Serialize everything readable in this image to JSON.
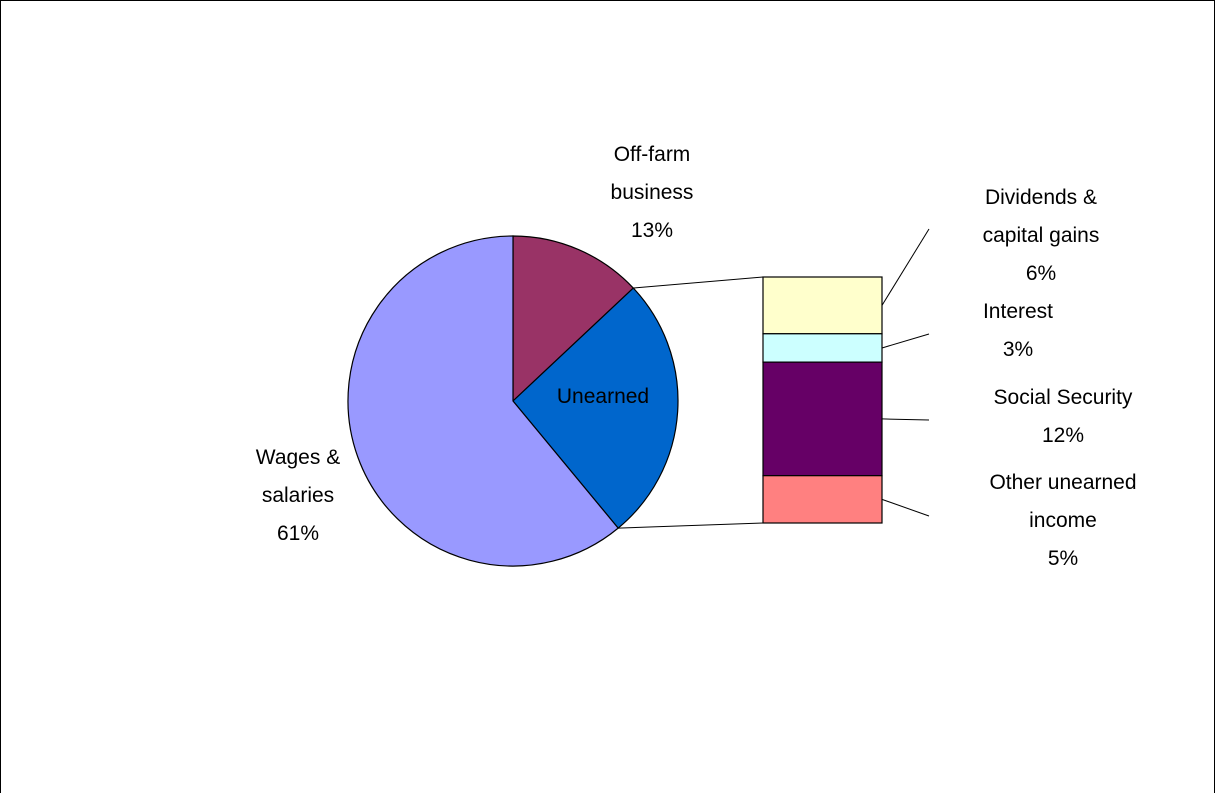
{
  "chart_data": {
    "type": "pie",
    "variant": "bar-of-pie",
    "title": "",
    "pie": {
      "slices": [
        {
          "label_lines": [
            "Off-farm",
            "business"
          ],
          "percent_label": "13%",
          "value": 13,
          "color": "#993366"
        },
        {
          "label_lines": [
            "Unearned"
          ],
          "percent_label": "",
          "value": 26,
          "color": "#0066CC"
        },
        {
          "label_lines": [
            "Wages &",
            "salaries"
          ],
          "percent_label": "61%",
          "value": 61,
          "color": "#9999FF"
        }
      ]
    },
    "bar": {
      "parent_slice": "Unearned",
      "segments": [
        {
          "label_lines": [
            "Dividends &",
            "capital gains"
          ],
          "percent_label": "6%",
          "value": 6,
          "color": "#FFFFCC"
        },
        {
          "label_lines": [
            "Interest"
          ],
          "percent_label": "3%",
          "value": 3,
          "color": "#CCFFFF"
        },
        {
          "label_lines": [
            "Social Security"
          ],
          "percent_label": "12%",
          "value": 12,
          "color": "#660066"
        },
        {
          "label_lines": [
            "Other unearned",
            "income"
          ],
          "percent_label": "5%",
          "value": 5,
          "color": "#FF8080"
        }
      ]
    },
    "legend": "none",
    "grid": false
  }
}
